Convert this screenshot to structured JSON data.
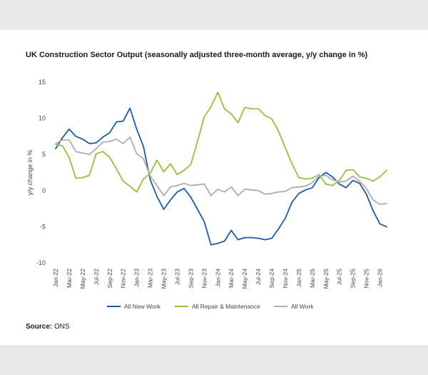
{
  "chart_data": {
    "type": "line",
    "title": "UK Construction Sector Output (seasonally adjusted three-month average, y/y change in %)",
    "ylabel": "y/y change in %",
    "xlabel": "",
    "ylim": [
      -10,
      15
    ],
    "yticks": [
      15,
      10,
      5,
      0,
      -5,
      -10
    ],
    "grid": false,
    "legend_position": "bottom",
    "x_tick_labels": [
      "Jan-22",
      "Mar-22",
      "May-22",
      "Jul-22",
      "Sep-22",
      "Nov-22",
      "Jan-23",
      "Mar-23",
      "May-23",
      "Jul-23",
      "Sep-23",
      "Nov-23",
      "Jan-24",
      "Mar-24",
      "May-24",
      "Jul-24",
      "Sep-24",
      "Nov-24",
      "Jan-25",
      "Mar-25",
      "May-25",
      "Jul-25",
      "Sep-25",
      "Nov-25",
      "Jan-26"
    ],
    "x": [
      "Jan-22",
      "Feb-22",
      "Mar-22",
      "Apr-22",
      "May-22",
      "Jun-22",
      "Jul-22",
      "Aug-22",
      "Sep-22",
      "Oct-22",
      "Nov-22",
      "Dec-22",
      "Jan-23",
      "Feb-23",
      "Mar-23",
      "Apr-23",
      "May-23",
      "Jun-23",
      "Jul-23",
      "Aug-23",
      "Sep-23",
      "Oct-23",
      "Nov-23",
      "Dec-23",
      "Jan-24",
      "Feb-24",
      "Mar-24",
      "Apr-24",
      "May-24",
      "Jun-24",
      "Jul-24",
      "Aug-24",
      "Sep-24",
      "Oct-24",
      "Nov-24",
      "Dec-24",
      "Jan-25",
      "Feb-25",
      "Mar-25",
      "Apr-25",
      "May-25",
      "Jun-25",
      "Jul-25",
      "Aug-25",
      "Sep-25",
      "Oct-25",
      "Nov-25",
      "Dec-25",
      "Jan-26",
      "Feb-26"
    ],
    "series": [
      {
        "name": "All New Work",
        "color": "#1f5aa6",
        "values": [
          5.8,
          7.3,
          8.5,
          7.5,
          7.1,
          6.5,
          6.6,
          7.4,
          8.0,
          9.5,
          9.6,
          11.4,
          8.5,
          6.1,
          1.5,
          -0.8,
          -2.6,
          -1.3,
          -0.2,
          0.3,
          -0.9,
          -2.6,
          -4.3,
          -7.5,
          -7.3,
          -7.0,
          -5.5,
          -6.8,
          -6.5,
          -6.5,
          -6.6,
          -6.8,
          -6.6,
          -5.3,
          -3.8,
          -1.6,
          -0.4,
          0.1,
          0.4,
          1.8,
          2.5,
          1.9,
          0.9,
          0.4,
          1.4,
          1.0,
          -0.5,
          -2.8,
          -4.6,
          -5.0
        ]
      },
      {
        "name": "All Repair & Maintenance",
        "color": "#93c23c",
        "values": [
          6.4,
          6.2,
          4.6,
          1.7,
          1.8,
          2.1,
          5.1,
          5.4,
          4.6,
          3.0,
          1.3,
          0.6,
          -0.2,
          1.6,
          2.4,
          4.2,
          2.6,
          3.7,
          2.2,
          2.8,
          3.6,
          6.8,
          10.2,
          11.6,
          13.6,
          11.3,
          10.6,
          9.4,
          11.5,
          11.3,
          11.3,
          10.4,
          9.9,
          8.2,
          5.9,
          3.7,
          1.8,
          1.6,
          1.7,
          2.2,
          0.9,
          0.7,
          1.4,
          2.8,
          2.9,
          1.9,
          1.7,
          1.3,
          1.9,
          2.8
        ]
      },
      {
        "name": "All Work",
        "color": "#adadad",
        "values": [
          6.5,
          7.0,
          7.0,
          5.4,
          5.2,
          5.0,
          5.8,
          6.7,
          6.8,
          7.1,
          6.5,
          7.4,
          5.1,
          4.4,
          2.0,
          0.7,
          -0.7,
          0.5,
          0.7,
          1.0,
          0.7,
          0.8,
          0.9,
          -0.7,
          0.2,
          -0.2,
          0.5,
          -0.7,
          0.2,
          0.1,
          0.0,
          -0.5,
          -0.4,
          -0.2,
          -0.1,
          0.4,
          0.5,
          0.6,
          1.1,
          2.0,
          2.1,
          1.5,
          1.2,
          1.3,
          2.0,
          1.3,
          0.3,
          -1.3,
          -1.9,
          -1.8
        ]
      }
    ]
  },
  "source": {
    "label": "Source:",
    "value": "ONS"
  }
}
